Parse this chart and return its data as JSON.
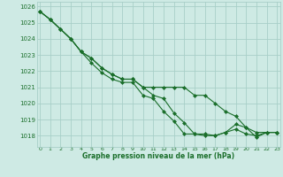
{
  "bg_color": "#ceeae4",
  "grid_color": "#a8cfc8",
  "line_color": "#1a6e2a",
  "marker_color": "#1a6e2a",
  "xlabel": "Graphe pression niveau de la mer (hPa)",
  "xlabel_color": "#1a6e2a",
  "ylim": [
    1017.3,
    1026.3
  ],
  "xlim": [
    -0.3,
    23.3
  ],
  "yticks": [
    1018,
    1019,
    1020,
    1021,
    1022,
    1023,
    1024,
    1025,
    1026
  ],
  "xticks": [
    0,
    1,
    2,
    3,
    4,
    5,
    6,
    7,
    8,
    9,
    10,
    11,
    12,
    13,
    14,
    15,
    16,
    17,
    18,
    19,
    20,
    21,
    22,
    23
  ],
  "series1_x": [
    0,
    1,
    2,
    3,
    4,
    5,
    6,
    7,
    8,
    9,
    10,
    11,
    12,
    13,
    14,
    15,
    16,
    17,
    18,
    19,
    20,
    21,
    22,
    23
  ],
  "series1_y": [
    1025.7,
    1025.2,
    1024.6,
    1024.0,
    1023.2,
    1022.8,
    1022.2,
    1021.8,
    1021.5,
    1021.5,
    1021.0,
    1021.0,
    1021.0,
    1021.0,
    1021.0,
    1020.5,
    1020.5,
    1020.0,
    1019.5,
    1019.2,
    1018.5,
    1018.2,
    1018.2,
    1018.2
  ],
  "series2_x": [
    0,
    1,
    2,
    3,
    4,
    5,
    6,
    7,
    8,
    9,
    10,
    11,
    12,
    13,
    14,
    15,
    16,
    17,
    18,
    19,
    20,
    21,
    22,
    23
  ],
  "series2_y": [
    1025.7,
    1025.2,
    1024.6,
    1024.0,
    1023.2,
    1022.8,
    1022.2,
    1021.8,
    1021.5,
    1021.5,
    1021.0,
    1020.5,
    1020.3,
    1019.4,
    1018.8,
    1018.1,
    1018.1,
    1018.0,
    1018.2,
    1018.4,
    1018.1,
    1018.0,
    1018.2,
    1018.2
  ],
  "series3_x": [
    0,
    1,
    2,
    3,
    4,
    5,
    6,
    7,
    8,
    9,
    10,
    11,
    12,
    13,
    14,
    15,
    16,
    17,
    18,
    19,
    20,
    21,
    22,
    23
  ],
  "series3_y": [
    1025.7,
    1025.2,
    1024.6,
    1024.0,
    1023.2,
    1022.5,
    1021.9,
    1021.5,
    1021.3,
    1021.3,
    1020.5,
    1020.3,
    1019.5,
    1018.9,
    1018.1,
    1018.1,
    1018.0,
    1018.0,
    1018.2,
    1018.7,
    1018.5,
    1017.9,
    1018.2,
    1018.2
  ]
}
